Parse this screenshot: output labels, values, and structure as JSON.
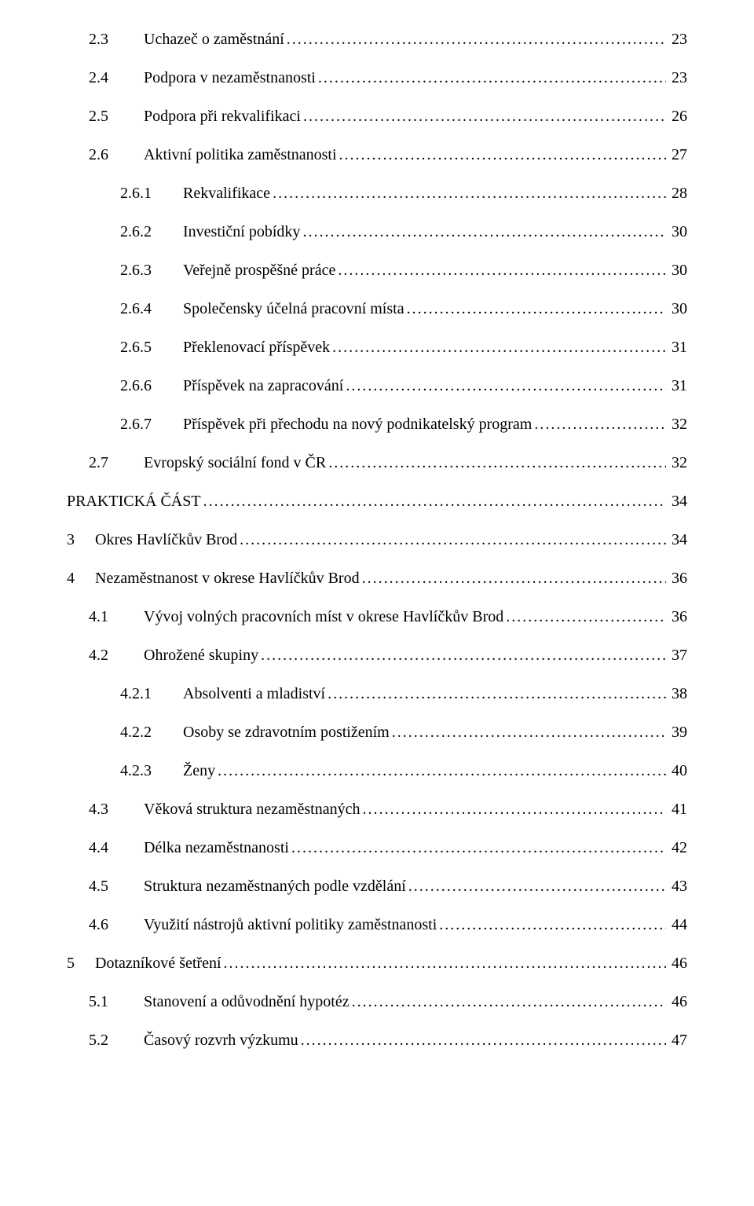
{
  "entries": [
    {
      "indent": 1,
      "numClass": "w-1",
      "num": "2.3",
      "title": "Uchazeč o zaměstnání",
      "page": "23"
    },
    {
      "indent": 1,
      "numClass": "w-1",
      "num": "2.4",
      "title": "Podpora v nezaměstnanosti",
      "page": "23"
    },
    {
      "indent": 1,
      "numClass": "w-1",
      "num": "2.5",
      "title": "Podpora při rekvalifikaci",
      "page": "26"
    },
    {
      "indent": 1,
      "numClass": "w-1",
      "num": "2.6",
      "title": "Aktivní politika zaměstnanosti",
      "page": "27"
    },
    {
      "indent": 2,
      "numClass": "w-2",
      "num": "2.6.1",
      "title": "Rekvalifikace",
      "page": "28"
    },
    {
      "indent": 2,
      "numClass": "w-2",
      "num": "2.6.2",
      "title": "Investiční pobídky",
      "page": "30"
    },
    {
      "indent": 2,
      "numClass": "w-2",
      "num": "2.6.3",
      "title": "Veřejně prospěšné práce",
      "page": "30"
    },
    {
      "indent": 2,
      "numClass": "w-2",
      "num": "2.6.4",
      "title": "Společensky účelná pracovní místa",
      "page": "30"
    },
    {
      "indent": 2,
      "numClass": "w-2",
      "num": "2.6.5",
      "title": "Překlenovací příspěvek",
      "page": "31"
    },
    {
      "indent": 2,
      "numClass": "w-2",
      "num": "2.6.6",
      "title": "Příspěvek na zapracování",
      "page": "31"
    },
    {
      "indent": 2,
      "numClass": "w-2",
      "num": "2.6.7",
      "title": "Příspěvek při přechodu na nový podnikatelský program",
      "page": "32"
    },
    {
      "indent": 1,
      "numClass": "w-1",
      "num": "2.7",
      "title": "Evropský sociální fond v ČR",
      "page": "32"
    },
    {
      "indent": 0,
      "numClass": "",
      "num": "",
      "title": "PRAKTICKÁ ČÁST",
      "page": "34"
    },
    {
      "indent": 0,
      "numClass": "w-top",
      "num": "3",
      "title": "Okres Havlíčkův Brod",
      "page": "34"
    },
    {
      "indent": 0,
      "numClass": "w-top",
      "num": "4",
      "title": "Nezaměstnanost v okrese Havlíčkův Brod",
      "page": "36"
    },
    {
      "indent": 1,
      "numClass": "w-1",
      "num": "4.1",
      "title": "Vývoj volných pracovních míst v okrese Havlíčkův Brod",
      "page": "36"
    },
    {
      "indent": 1,
      "numClass": "w-1",
      "num": "4.2",
      "title": "Ohrožené skupiny",
      "page": "37"
    },
    {
      "indent": 2,
      "numClass": "w-2",
      "num": "4.2.1",
      "title": "Absolventi a mladiství",
      "page": "38"
    },
    {
      "indent": 2,
      "numClass": "w-2",
      "num": "4.2.2",
      "title": "Osoby se zdravotním postižením",
      "page": "39"
    },
    {
      "indent": 2,
      "numClass": "w-2",
      "num": "4.2.3",
      "title": "Ženy",
      "page": "40"
    },
    {
      "indent": 1,
      "numClass": "w-1",
      "num": "4.3",
      "title": "Věková struktura nezaměstnaných",
      "page": "41"
    },
    {
      "indent": 1,
      "numClass": "w-1",
      "num": "4.4",
      "title": "Délka nezaměstnanosti",
      "page": "42"
    },
    {
      "indent": 1,
      "numClass": "w-1",
      "num": "4.5",
      "title": "Struktura nezaměstnaných podle vzdělání",
      "page": "43"
    },
    {
      "indent": 1,
      "numClass": "w-1",
      "num": "4.6",
      "title": "Využití nástrojů aktivní politiky zaměstnanosti",
      "page": "44"
    },
    {
      "indent": 0,
      "numClass": "w-top",
      "num": "5",
      "title": "Dotazníkové šetření",
      "page": "46"
    },
    {
      "indent": 1,
      "numClass": "w-1",
      "num": "5.1",
      "title": "Stanovení a odůvodnění hypotéz",
      "page": "46"
    },
    {
      "indent": 1,
      "numClass": "w-1",
      "num": "5.2",
      "title": "Časový rozvrh výzkumu",
      "page": "47"
    }
  ]
}
